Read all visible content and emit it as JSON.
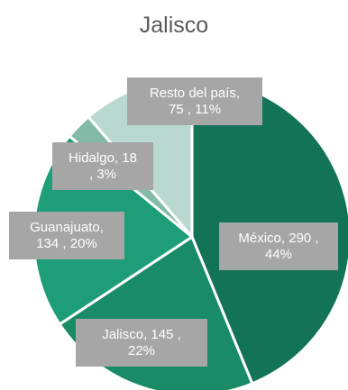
{
  "chart_data": {
    "type": "pie",
    "title": "Jalisco",
    "slices": [
      {
        "name": "México",
        "value": 290,
        "percent": "44%",
        "color": "#137357"
      },
      {
        "name": "Jalisco",
        "value": 145,
        "percent": "22%",
        "color": "#198c67"
      },
      {
        "name": "Guanajuato",
        "value": 134,
        "percent": "20%",
        "color": "#1e9d79"
      },
      {
        "name": "Hidalgo",
        "value": 18,
        "percent": "3%",
        "color": "#83bba8"
      },
      {
        "name": "Resto del país",
        "value": 75,
        "percent": "11%",
        "color": "#b9d8cf"
      }
    ],
    "label_bg": "#a6a6a6",
    "label_text_color": "#ffffff",
    "separator_color": "#ffffff"
  }
}
